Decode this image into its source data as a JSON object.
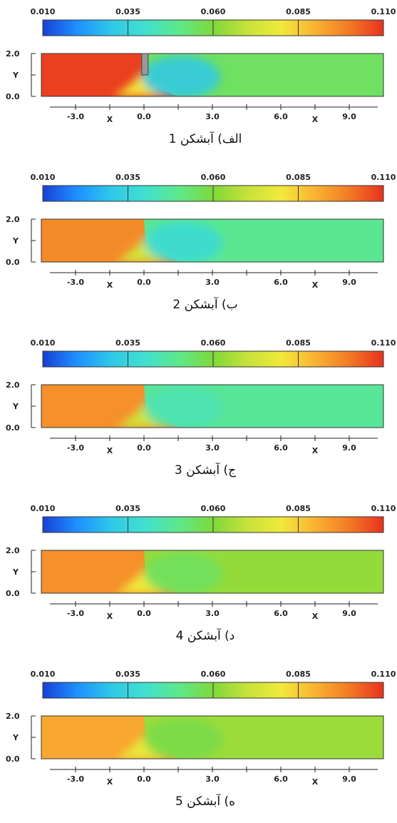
{
  "chart_data": [
    {
      "type": "heatmap",
      "caption": "الف) آبشکن 1",
      "colorbar": {
        "ticks": [
          "0.010",
          "0.035",
          "0.060",
          "0.085",
          "0.110"
        ]
      },
      "y_ticks": [
        "2.0",
        "0.0"
      ],
      "ylabel": "Y",
      "x_ticks": [
        "-3.0",
        "0.0",
        "3.0",
        "6.0",
        "9.0"
      ],
      "xlabel": "X",
      "x_range": [
        -4.5,
        10.5
      ],
      "y_range": [
        0,
        2
      ],
      "value_range": [
        0.01,
        0.11
      ],
      "obstacle": true,
      "field": {
        "upstream_value": 0.108,
        "downstream_value": 0.055,
        "front_x": -0.1,
        "low_zone_value": 0.03
      }
    },
    {
      "type": "heatmap",
      "caption": "ب) آبشکن 2",
      "colorbar": {
        "ticks": [
          "0.010",
          "0.035",
          "0.060",
          "0.085",
          "0.110"
        ]
      },
      "y_ticks": [
        "2.0",
        "0.0"
      ],
      "ylabel": "Y",
      "x_ticks": [
        "-3.0",
        "0.0",
        "3.0",
        "6.0",
        "9.0"
      ],
      "xlabel": "X",
      "x_range": [
        -4.5,
        10.5
      ],
      "y_range": [
        0,
        2
      ],
      "value_range": [
        0.01,
        0.11
      ],
      "obstacle": false,
      "field": {
        "upstream_value": 0.097,
        "downstream_value": 0.049,
        "front_x": 0.0,
        "low_zone_value": 0.037
      }
    },
    {
      "type": "heatmap",
      "caption": "ج) آبشکن 3",
      "colorbar": {
        "ticks": [
          "0.010",
          "0.035",
          "0.060",
          "0.085",
          "0.110"
        ]
      },
      "y_ticks": [
        "2.0",
        "0.0"
      ],
      "ylabel": "Y",
      "x_ticks": [
        "-3.0",
        "0.0",
        "3.0",
        "6.0",
        "9.0"
      ],
      "xlabel": "X",
      "x_range": [
        -4.5,
        10.5
      ],
      "y_range": [
        0,
        2
      ],
      "value_range": [
        0.01,
        0.11
      ],
      "obstacle": false,
      "field": {
        "upstream_value": 0.096,
        "downstream_value": 0.048,
        "front_x": 0.0,
        "low_zone_value": 0.044
      }
    },
    {
      "type": "heatmap",
      "caption": "د) آبشکن 4",
      "colorbar": {
        "ticks": [
          "0.010",
          "0.035",
          "0.060",
          "0.085",
          "0.110"
        ]
      },
      "y_ticks": [
        "2.0",
        "0.0"
      ],
      "ylabel": "Y",
      "x_ticks": [
        "-3.0",
        "0.0",
        "3.0",
        "6.0",
        "9.0"
      ],
      "xlabel": "X",
      "x_range": [
        -4.5,
        10.5
      ],
      "y_range": [
        0,
        2
      ],
      "value_range": [
        0.01,
        0.11
      ],
      "obstacle": false,
      "field": {
        "upstream_value": 0.096,
        "downstream_value": 0.063,
        "front_x": 0.0,
        "low_zone_value": 0.055
      }
    },
    {
      "type": "heatmap",
      "caption": "ه) آبشکن 5",
      "colorbar": {
        "ticks": [
          "0.010",
          "0.035",
          "0.060",
          "0.085",
          "0.110"
        ]
      },
      "y_ticks": [
        "2.0",
        "0.0"
      ],
      "ylabel": "Y",
      "x_ticks": [
        "-3.0",
        "0.0",
        "3.0",
        "6.0",
        "9.0"
      ],
      "xlabel": "X",
      "x_range": [
        -4.5,
        10.5
      ],
      "y_range": [
        0,
        2
      ],
      "value_range": [
        0.01,
        0.11
      ],
      "obstacle": false,
      "field": {
        "upstream_value": 0.092,
        "downstream_value": 0.064,
        "front_x": 0.0,
        "low_zone_value": 0.058
      }
    }
  ],
  "colors": {
    "jet": [
      "#1a3fd6",
      "#1e90ff",
      "#2ec8e8",
      "#40e0d0",
      "#5ee88a",
      "#7fd83a",
      "#c6e23a",
      "#f2e93a",
      "#f9b233",
      "#f27a24",
      "#e8321e"
    ]
  }
}
